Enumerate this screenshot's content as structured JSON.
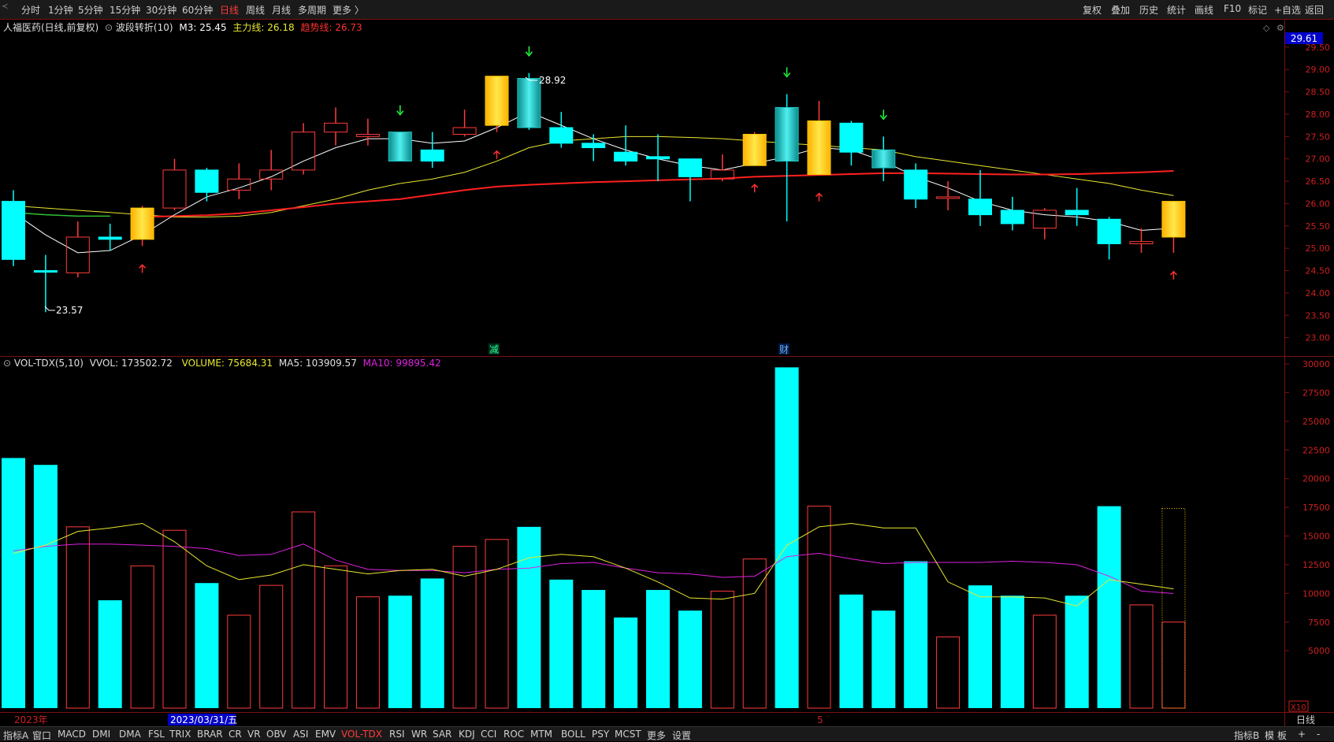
{
  "topbar": {
    "left_items": [
      "分时",
      "1分钟",
      "5分钟",
      "15分钟",
      "30分钟",
      "60分钟",
      "日线",
      "周线",
      "月线",
      "多周期",
      "更多 〉"
    ],
    "active_item": "日线",
    "right_items": [
      "复权",
      "叠加",
      "历史",
      "统计",
      "画线",
      "F10",
      "标记",
      "+自选",
      "返回"
    ]
  },
  "price_panel": {
    "stock_name": "人福医药(日线,前复权)",
    "indicator_name": "波段转折(10)",
    "m3": "M3: 25.45",
    "main_line": "主力线: 26.18",
    "trend_line": "趋势线: 26.73",
    "current_price_tag": "29.61",
    "high_label": "28.92",
    "low_label": "23.57",
    "event_labels": [
      {
        "text": "减",
        "bar": 15
      },
      {
        "text": "财",
        "bar": 24
      }
    ],
    "y_ticks": [
      "29.50",
      "29.00",
      "28.50",
      "28.00",
      "27.50",
      "27.00",
      "26.50",
      "26.00",
      "25.50",
      "25.00",
      "24.50",
      "24.00",
      "23.50",
      "23.00"
    ]
  },
  "volume_panel": {
    "indicator": "VOL-TDX(5,10)",
    "vvol": "VVOL: 173502.72",
    "volume": "VOLUME: 75684.31",
    "ma5": "MA5: 103909.57",
    "ma10": "MA10: 99895.42",
    "y_ticks": [
      "30000",
      "27500",
      "25000",
      "22500",
      "20000",
      "17500",
      "15000",
      "12500",
      "10000",
      "7500",
      "5000"
    ],
    "unit": "X10"
  },
  "date_axis": {
    "year_label": "2023年",
    "cursor_date": "2023/03/31/五",
    "month_label": "5",
    "period_label": "日线"
  },
  "bottombar": {
    "items": [
      "指标A",
      "窗口",
      "MACD",
      "DMI",
      "DMA",
      "FSL",
      "TRIX",
      "BRAR",
      "CR",
      "VR",
      "OBV",
      "ASI",
      "EMV",
      "VOL-TDX",
      "RSI",
      "WR",
      "SAR",
      "KDJ",
      "CCI",
      "ROC",
      "MTM",
      "BOLL",
      "PSY",
      "MCST",
      "更多",
      "设置"
    ],
    "active_item": "VOL-TDX",
    "right_items": [
      "指标B",
      "模",
      "板",
      "+",
      "-"
    ]
  },
  "colors": {
    "up": "#ff3b3b",
    "down": "#00ffff",
    "highlight": "#ffc800",
    "ma_white": "#ffffff",
    "ma_yellow": "#e8e830",
    "main_red": "#ff2020",
    "ma10_magenta": "#e020e0"
  },
  "chart_data": {
    "type": "candlestick",
    "price_range": [
      22.8,
      29.85
    ],
    "volume_range": [
      0,
      30000
    ],
    "candles": [
      {
        "o": 26.05,
        "h": 26.3,
        "l": 24.6,
        "c": 24.75,
        "v": 21800,
        "s": "down"
      },
      {
        "o": 24.5,
        "h": 24.85,
        "l": 23.57,
        "c": 24.5,
        "v": 21200,
        "s": "down"
      },
      {
        "o": 24.45,
        "h": 25.6,
        "l": 24.35,
        "c": 25.25,
        "v": 15800,
        "s": "up"
      },
      {
        "o": 25.25,
        "h": 25.55,
        "l": 24.95,
        "c": 25.2,
        "v": 9400,
        "s": "down"
      },
      {
        "o": 25.2,
        "h": 25.95,
        "l": 25.05,
        "c": 25.9,
        "v": 12400,
        "s": "yellow"
      },
      {
        "o": 25.9,
        "h": 27.0,
        "l": 25.85,
        "c": 26.75,
        "v": 15500,
        "s": "up"
      },
      {
        "o": 26.75,
        "h": 26.8,
        "l": 26.05,
        "c": 26.25,
        "v": 10900,
        "s": "down"
      },
      {
        "o": 26.3,
        "h": 26.9,
        "l": 26.1,
        "c": 26.55,
        "v": 8100,
        "s": "up"
      },
      {
        "o": 26.55,
        "h": 27.2,
        "l": 26.3,
        "c": 26.75,
        "v": 10700,
        "s": "up"
      },
      {
        "o": 26.75,
        "h": 27.8,
        "l": 26.65,
        "c": 27.6,
        "v": 17100,
        "s": "up"
      },
      {
        "o": 27.6,
        "h": 28.15,
        "l": 27.3,
        "c": 27.8,
        "v": 12400,
        "s": "up"
      },
      {
        "o": 27.5,
        "h": 27.9,
        "l": 27.3,
        "c": 27.55,
        "v": 9700,
        "s": "up"
      },
      {
        "o": 27.6,
        "h": 27.6,
        "l": 27.0,
        "c": 26.95,
        "v": 9800,
        "s": "teal"
      },
      {
        "o": 27.2,
        "h": 27.6,
        "l": 26.8,
        "c": 26.95,
        "v": 11300,
        "s": "down"
      },
      {
        "o": 27.55,
        "h": 28.1,
        "l": 27.5,
        "c": 27.7,
        "v": 14100,
        "s": "up"
      },
      {
        "o": 27.75,
        "h": 28.85,
        "l": 27.6,
        "c": 28.85,
        "v": 14700,
        "s": "yellow"
      },
      {
        "o": 28.8,
        "h": 28.92,
        "l": 27.65,
        "c": 27.7,
        "v": 15800,
        "s": "teal"
      },
      {
        "o": 27.7,
        "h": 28.05,
        "l": 27.25,
        "c": 27.35,
        "v": 11200,
        "s": "down"
      },
      {
        "o": 27.35,
        "h": 27.55,
        "l": 26.95,
        "c": 27.25,
        "v": 10300,
        "s": "down"
      },
      {
        "o": 27.15,
        "h": 27.75,
        "l": 26.85,
        "c": 26.95,
        "v": 7900,
        "s": "down"
      },
      {
        "o": 27.05,
        "h": 27.55,
        "l": 26.5,
        "c": 27.0,
        "v": 10300,
        "s": "down"
      },
      {
        "o": 27.0,
        "h": 27.0,
        "l": 26.05,
        "c": 26.6,
        "v": 8500,
        "s": "down"
      },
      {
        "o": 26.55,
        "h": 27.1,
        "l": 26.5,
        "c": 26.75,
        "v": 10200,
        "s": "up"
      },
      {
        "o": 26.85,
        "h": 27.6,
        "l": 26.85,
        "c": 27.55,
        "v": 13000,
        "s": "yellow"
      },
      {
        "o": 28.15,
        "h": 28.45,
        "l": 25.6,
        "c": 26.95,
        "v": 29700,
        "s": "teal"
      },
      {
        "o": 26.65,
        "h": 28.3,
        "l": 26.65,
        "c": 27.85,
        "v": 17600,
        "s": "yellow"
      },
      {
        "o": 27.8,
        "h": 27.85,
        "l": 26.85,
        "c": 27.15,
        "v": 9900,
        "s": "down"
      },
      {
        "o": 27.2,
        "h": 27.5,
        "l": 26.5,
        "c": 26.8,
        "v": 8500,
        "s": "teal"
      },
      {
        "o": 26.75,
        "h": 26.9,
        "l": 25.9,
        "c": 26.1,
        "v": 12800,
        "s": "down"
      },
      {
        "o": 26.12,
        "h": 26.5,
        "l": 25.85,
        "c": 26.15,
        "v": 6200,
        "s": "up"
      },
      {
        "o": 26.1,
        "h": 26.75,
        "l": 25.5,
        "c": 25.75,
        "v": 10700,
        "s": "down"
      },
      {
        "o": 25.85,
        "h": 26.15,
        "l": 25.4,
        "c": 25.55,
        "v": 9800,
        "s": "down"
      },
      {
        "o": 25.45,
        "h": 25.9,
        "l": 25.2,
        "c": 25.85,
        "v": 8100,
        "s": "up"
      },
      {
        "o": 25.85,
        "h": 26.35,
        "l": 25.5,
        "c": 25.75,
        "v": 9800,
        "s": "down"
      },
      {
        "o": 25.65,
        "h": 25.7,
        "l": 24.75,
        "c": 25.1,
        "v": 17600,
        "s": "down"
      },
      {
        "o": 25.15,
        "h": 25.45,
        "l": 24.9,
        "c": 25.1,
        "v": 9000,
        "s": "up"
      },
      {
        "o": 25.25,
        "h": 26.05,
        "l": 24.9,
        "c": 26.05,
        "v": 7500,
        "s": "yellow"
      }
    ],
    "ma_white": [
      25.8,
      25.3,
      24.9,
      24.95,
      25.3,
      25.75,
      26.15,
      26.35,
      26.6,
      26.95,
      27.25,
      27.45,
      27.45,
      27.35,
      27.4,
      27.7,
      28.05,
      27.75,
      27.45,
      27.2,
      27.0,
      26.85,
      26.75,
      26.9,
      27.05,
      27.25,
      27.2,
      26.95,
      26.6,
      26.35,
      26.05,
      25.85,
      25.75,
      25.7,
      25.6,
      25.4,
      25.45
    ],
    "ma_yellow": [
      25.95,
      25.9,
      25.85,
      25.8,
      25.75,
      25.7,
      25.7,
      25.72,
      25.8,
      25.95,
      26.1,
      26.3,
      26.45,
      26.55,
      26.7,
      26.95,
      27.25,
      27.4,
      27.45,
      27.5,
      27.5,
      27.48,
      27.45,
      27.4,
      27.35,
      27.3,
      27.25,
      27.2,
      27.05,
      26.95,
      26.85,
      26.75,
      26.65,
      26.55,
      26.45,
      26.3,
      26.18
    ],
    "ma_green": [
      25.8,
      25.75,
      25.72,
      25.72
    ],
    "ma_red": [
      null,
      null,
      null,
      null,
      25.7,
      25.72,
      25.74,
      25.78,
      25.85,
      25.92,
      26.0,
      26.05,
      26.1,
      26.2,
      26.3,
      26.38,
      26.42,
      26.45,
      26.48,
      26.5,
      26.52,
      26.54,
      26.56,
      26.6,
      26.62,
      26.64,
      26.66,
      26.68,
      26.68,
      26.67,
      26.66,
      26.65,
      26.65,
      26.66,
      26.68,
      26.7,
      26.73
    ],
    "vol_ma5": [
      13500,
      14200,
      15400,
      15700,
      16100,
      14500,
      12400,
      11200,
      11600,
      12500,
      12100,
      11700,
      12000,
      12100,
      11500,
      12100,
      13100,
      13400,
      13200,
      12200,
      11000,
      9600,
      9500,
      10000,
      14200,
      15800,
      16100,
      15700,
      15700,
      11000,
      9700,
      9700,
      9600,
      8900,
      11200,
      10800,
      10390
    ],
    "vol_ma10": [
      13700,
      14100,
      14300,
      14300,
      14200,
      14100,
      13900,
      13300,
      13400,
      14300,
      12900,
      12100,
      12000,
      12000,
      11800,
      12100,
      12200,
      12600,
      12700,
      12200,
      11800,
      11700,
      11400,
      11500,
      13200,
      13500,
      13000,
      12600,
      12700,
      12700,
      12700,
      12800,
      12700,
      12500,
      11500,
      10200,
      9990
    ],
    "sell_arrows": [
      12,
      16,
      24,
      27
    ],
    "buy_arrows": [
      4,
      15,
      23,
      25,
      36
    ]
  }
}
